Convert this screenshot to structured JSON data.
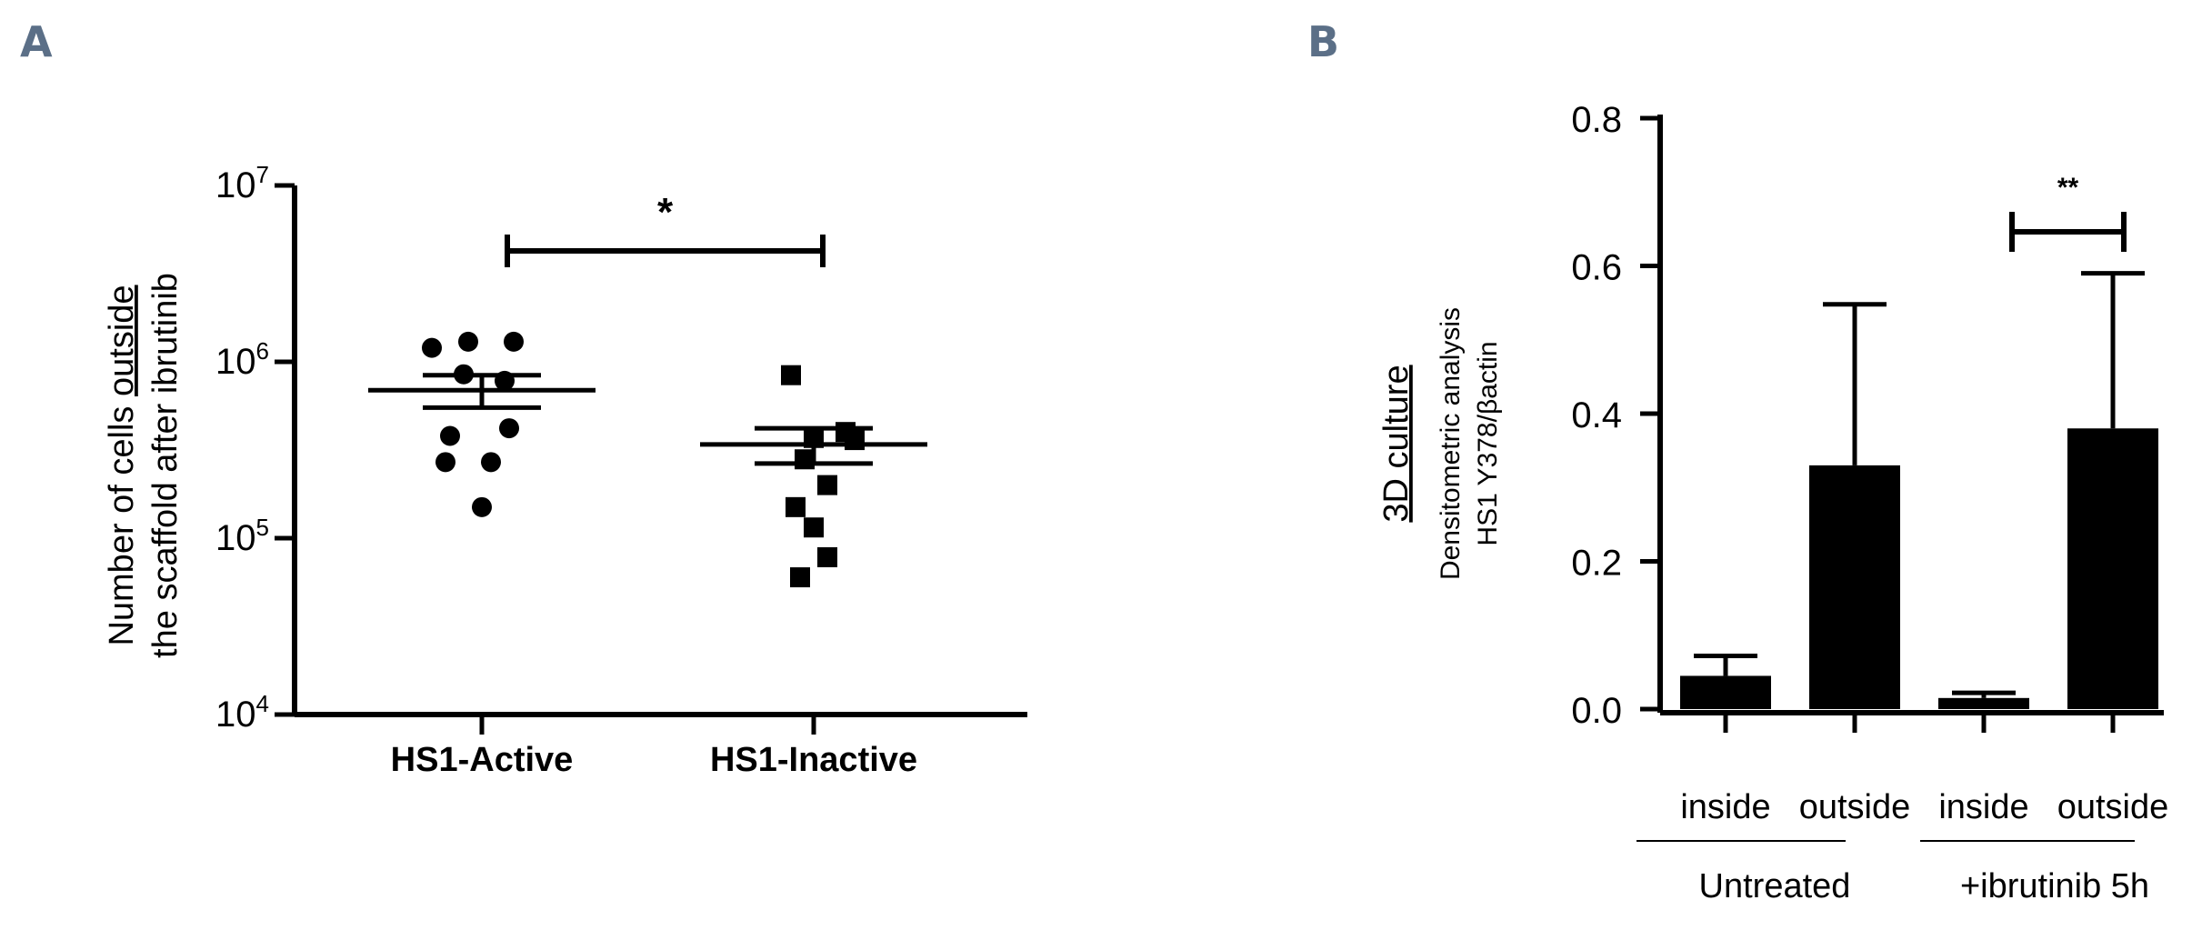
{
  "panels": {
    "a": {
      "letter": "A"
    },
    "b": {
      "letter": "B"
    }
  },
  "chart_data": [
    {
      "type": "scatter",
      "panel": "A",
      "ylabel_prefix": "Number of cells ",
      "ylabel_underlined": "outside",
      "ylabel_line2": "the scaffold after ibrutinib",
      "yscale": "log",
      "ylim": [
        10000,
        10000000
      ],
      "yticks": [
        {
          "value": 10000,
          "base": "10",
          "exp": "4"
        },
        {
          "value": 100000,
          "base": "10",
          "exp": "5"
        },
        {
          "value": 1000000,
          "base": "10",
          "exp": "6"
        },
        {
          "value": 10000000,
          "base": "10",
          "exp": "7"
        }
      ],
      "categories": [
        "HS1-Active",
        "HS1-Inactive"
      ],
      "series": [
        {
          "category": "HS1-Active",
          "marker": "circle",
          "points": [
            1300000,
            1300000,
            1200000,
            850000,
            780000,
            420000,
            380000,
            270000,
            270000,
            150000
          ],
          "mean": 690000,
          "sem_upper": 840000,
          "sem_lower": 550000
        },
        {
          "category": "HS1-Inactive",
          "marker": "square",
          "points": [
            840000,
            400000,
            370000,
            360000,
            280000,
            200000,
            150000,
            115000,
            78000,
            60000
          ],
          "mean": 340000,
          "sem_upper": 420000,
          "sem_lower": 265000
        }
      ],
      "significance": {
        "from": "HS1-Active",
        "to": "HS1-Inactive",
        "label": "*"
      }
    },
    {
      "type": "bar",
      "panel": "B",
      "ylabel_underlined": "3D culture",
      "ylabel_line2": "Densitometric analysis",
      "ylabel_line3": "HS1 Y378/βactin",
      "ylim": [
        0,
        0.8
      ],
      "yticks": [
        "0.0",
        "0.2",
        "0.4",
        "0.6",
        "0.8"
      ],
      "categories": [
        "inside",
        "outside",
        "inside",
        "outside"
      ],
      "groups": [
        "Untreated",
        "+ibrutinib 5h"
      ],
      "values": [
        0.045,
        0.33,
        0.015,
        0.38
      ],
      "error_upper": [
        0.072,
        0.548,
        0.022,
        0.59
      ],
      "significance": {
        "from": 2,
        "to": 3,
        "label": "**"
      }
    }
  ]
}
